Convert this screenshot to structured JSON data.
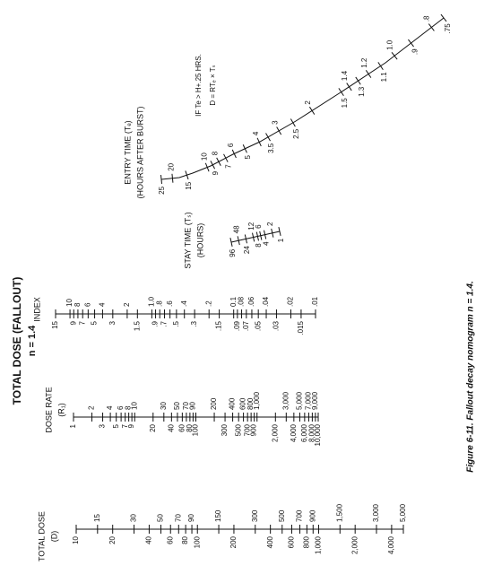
{
  "title": "TOTAL DOSE (FALLOUT)",
  "subtitle": "n = 1.4",
  "caption": "Figure 6-11. Fallout decay nomogram n = 1.4.",
  "annotation": [
    "IF Te > H+.25 HRS.",
    "D = RTₑ × Tₛ"
  ],
  "scales": [
    {
      "name": "TOTAL DOSE",
      "unit": "(D)",
      "ticks": [
        10,
        15,
        20,
        30,
        40,
        50,
        60,
        70,
        80,
        90,
        100,
        150,
        200,
        300,
        400,
        500,
        600,
        700,
        800,
        900,
        {
          "value": 1000,
          "label": "1,000"
        },
        {
          "value": 1500,
          "label": "1,500"
        },
        {
          "value": 2000,
          "label": "2,000"
        },
        {
          "value": 3000,
          "label": "3,000"
        },
        {
          "value": 4000,
          "label": "4,000"
        },
        {
          "value": 5000,
          "label": "5,000"
        }
      ]
    },
    {
      "name": "DOSE RATE",
      "unit": "(R₁)",
      "ticks": [
        1,
        2,
        3,
        4,
        5,
        6,
        7,
        8,
        9,
        10,
        20,
        30,
        40,
        50,
        60,
        70,
        80,
        90,
        100,
        200,
        300,
        400,
        500,
        600,
        700,
        800,
        900,
        {
          "value": 1000,
          "label": "1,000"
        },
        {
          "value": 2000,
          "label": "2,000"
        },
        {
          "value": 3000,
          "label": "3,000"
        },
        {
          "value": 4000,
          "label": "4,000"
        },
        {
          "value": 5000,
          "label": "5,000"
        },
        {
          "value": 6000,
          "label": "6,000"
        },
        {
          "value": 7000,
          "label": "7,000"
        },
        {
          "value": 8000,
          "label": "8,000"
        },
        {
          "value": 9000,
          "label": "9,000"
        },
        {
          "value": 10000,
          "label": "10,000"
        }
      ]
    },
    {
      "name": "INDEX",
      "ticks": [
        15,
        10,
        9,
        8,
        7,
        6,
        5,
        4,
        3,
        2,
        1.5,
        {
          "value": 1,
          "label": "1.0"
        },
        {
          "value": 0.9,
          "label": ".9"
        },
        {
          "value": 0.8,
          "label": ".8"
        },
        {
          "value": 0.7,
          "label": ".7"
        },
        {
          "value": 0.6,
          "label": ".6"
        },
        {
          "value": 0.5,
          "label": ".5"
        },
        {
          "value": 0.4,
          "label": ".4"
        },
        {
          "value": 0.3,
          "label": ".3"
        },
        {
          "value": 0.2,
          "label": ".2"
        },
        {
          "value": 0.15,
          "label": ".15"
        },
        0.1,
        {
          "value": 0.09,
          "label": ".09"
        },
        {
          "value": 0.08,
          "label": ".08"
        },
        {
          "value": 0.07,
          "label": ".07"
        },
        {
          "value": 0.06,
          "label": ".06"
        },
        {
          "value": 0.05,
          "label": ".05"
        },
        {
          "value": 0.04,
          "label": ".04"
        },
        {
          "value": 0.03,
          "label": ".03"
        },
        {
          "value": 0.02,
          "label": ".02"
        },
        {
          "value": 0.015,
          "label": ".015"
        },
        {
          "value": 0.01,
          "label": ".01"
        }
      ]
    },
    {
      "name": "STAY TIME (Tₛ)",
      "unit": "(HOURS)",
      "ticks": [
        96,
        48,
        24,
        12,
        8,
        6,
        4,
        2,
        1
      ]
    },
    {
      "name": "ENTRY TIME (Tₑ)",
      "unit": "(HOURS AFTER BURST)",
      "ticks": [
        25,
        20,
        15,
        10,
        9,
        8,
        7,
        6,
        5,
        4,
        3.5,
        3,
        2.5,
        2,
        1.5,
        1.4,
        1.3,
        1.2,
        1.1,
        {
          "value": 1,
          "label": "1.0"
        },
        {
          "value": 0.9,
          "label": ".9"
        },
        {
          "value": 0.8,
          "label": ".8"
        },
        {
          "value": 0.75,
          "label": ".75"
        }
      ]
    }
  ]
}
